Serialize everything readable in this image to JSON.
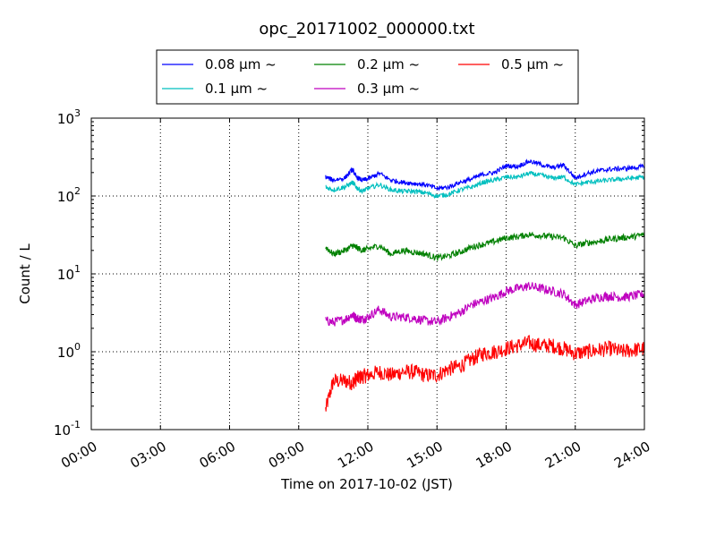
{
  "chart_data": {
    "type": "line",
    "title": "opc_20171002_000000.txt",
    "xlabel": "Time on 2017-10-02 (JST)",
    "ylabel": "Count / L",
    "y_scale": "log",
    "ylim": [
      0.1,
      1000
    ],
    "xlim": [
      "00:00",
      "24:00"
    ],
    "grid": true,
    "legend_position": "top-center",
    "x_tick_labels": [
      "00:00",
      "03:00",
      "06:00",
      "09:00",
      "12:00",
      "15:00",
      "18:00",
      "21:00",
      "24:00"
    ],
    "y_ticks": [
      {
        "base": "10",
        "exp": "-1"
      },
      {
        "base": "10",
        "exp": "0"
      },
      {
        "base": "10",
        "exp": "1"
      },
      {
        "base": "10",
        "exp": "2"
      },
      {
        "base": "10",
        "exp": "3"
      }
    ],
    "x": [
      "10:10",
      "10:30",
      "11:00",
      "11:20",
      "11:30",
      "11:45",
      "12:00",
      "12:30",
      "13:00",
      "13:30",
      "14:00",
      "14:30",
      "15:00",
      "15:30",
      "16:00",
      "16:30",
      "17:00",
      "17:30",
      "18:00",
      "18:30",
      "19:00",
      "19:30",
      "20:00",
      "20:30",
      "21:00",
      "21:30",
      "22:00",
      "22:30",
      "23:00",
      "23:30",
      "24:00"
    ],
    "series": [
      {
        "name": "0.08 μm ~",
        "color": "#0000ff",
        "noise": 0.03,
        "values": [
          175,
          160,
          170,
          220,
          175,
          160,
          165,
          195,
          160,
          150,
          145,
          140,
          125,
          130,
          150,
          165,
          190,
          200,
          245,
          240,
          280,
          255,
          230,
          250,
          170,
          195,
          210,
          220,
          225,
          230,
          240
        ]
      },
      {
        "name": "0.1 μm ~",
        "color": "#00bfbf",
        "noise": 0.03,
        "values": [
          130,
          120,
          130,
          150,
          130,
          115,
          125,
          140,
          120,
          115,
          115,
          110,
          100,
          105,
          120,
          130,
          150,
          160,
          175,
          175,
          195,
          185,
          170,
          175,
          140,
          150,
          155,
          160,
          165,
          170,
          175
        ]
      },
      {
        "name": "0.2 μm ~",
        "color": "#008000",
        "noise": 0.04,
        "values": [
          22,
          18,
          20,
          23,
          22,
          20,
          21,
          23,
          18,
          20,
          19,
          18,
          16,
          17,
          19,
          22,
          24,
          26,
          29,
          30,
          32,
          31,
          30,
          29,
          23,
          25,
          26,
          28,
          29,
          30,
          32
        ]
      },
      {
        "name": "0.3 μm ~",
        "color": "#bf00bf",
        "noise": 0.06,
        "values": [
          2.5,
          2.4,
          2.6,
          3.0,
          2.7,
          2.6,
          2.8,
          3.5,
          2.8,
          2.8,
          2.7,
          2.5,
          2.4,
          2.8,
          3.2,
          4.0,
          4.5,
          5.0,
          6.0,
          6.5,
          7.0,
          6.5,
          6.0,
          5.5,
          4.0,
          4.5,
          5.0,
          5.2,
          5.0,
          5.2,
          5.5
        ]
      },
      {
        "name": "0.5 μm ~",
        "color": "#ff0000",
        "noise": 0.1,
        "values": [
          0.18,
          0.42,
          0.42,
          0.4,
          0.45,
          0.48,
          0.5,
          0.55,
          0.5,
          0.55,
          0.55,
          0.5,
          0.5,
          0.6,
          0.65,
          0.8,
          0.95,
          1.0,
          1.1,
          1.2,
          1.3,
          1.2,
          1.2,
          1.1,
          0.95,
          1.0,
          1.05,
          1.1,
          1.0,
          1.05,
          1.1
        ]
      }
    ]
  }
}
